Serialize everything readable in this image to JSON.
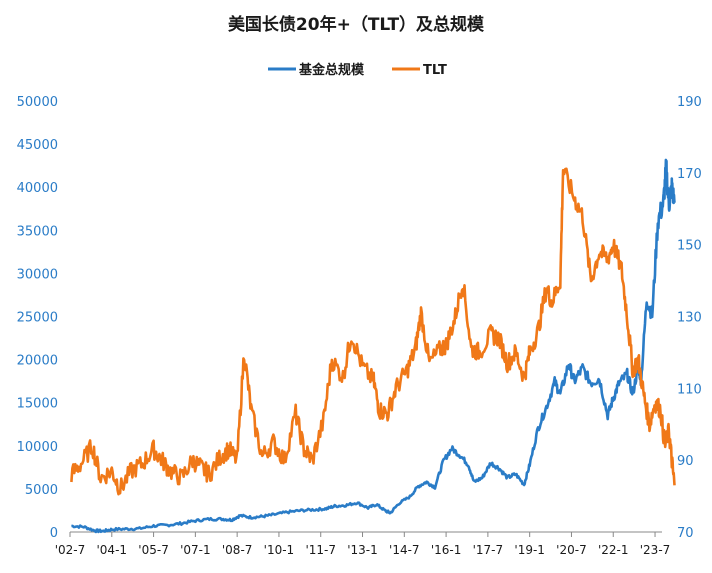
{
  "chart_data": {
    "type": "line",
    "title": "美国长债20年+（TLT）及总规模",
    "legend_position": "top-center",
    "grid": false,
    "x_tick_labels": [
      "'02-7",
      "'04-1",
      "'05-7",
      "'07-1",
      "'08-7",
      "'10-1",
      "'11-7",
      "'13-1",
      "'14-7",
      "'16-1",
      "'17-7",
      "'19-1",
      "'20-7",
      "'22-1",
      "'23-7"
    ],
    "x_tick_values": [
      2002.5,
      2004.0,
      2005.5,
      2007.0,
      2008.5,
      2010.0,
      2011.5,
      2013.0,
      2014.5,
      2016.0,
      2017.5,
      2019.0,
      2020.5,
      2022.0,
      2023.5
    ],
    "xlim": [
      2002.5,
      2023.75
    ],
    "y_left": {
      "ticks": [
        "0",
        "5000",
        "10000",
        "15000",
        "20000",
        "25000",
        "30000",
        "35000",
        "40000",
        "45000",
        "50000"
      ],
      "lim": [
        0,
        50000
      ]
    },
    "y_right": {
      "ticks": [
        "70",
        "90",
        "110",
        "130",
        "150",
        "170",
        "190"
      ],
      "lim": [
        70,
        190
      ]
    },
    "series": [
      {
        "name": "基金总规模",
        "axis": "left",
        "color": "#2a7cc7",
        "points": [
          [
            2002.55,
            700
          ],
          [
            2003.0,
            600
          ],
          [
            2003.4,
            150
          ],
          [
            2003.7,
            100
          ],
          [
            2004.0,
            300
          ],
          [
            2004.5,
            350
          ],
          [
            2005.0,
            400
          ],
          [
            2005.5,
            700
          ],
          [
            2006.0,
            800
          ],
          [
            2006.5,
            1000
          ],
          [
            2007.0,
            1300
          ],
          [
            2007.5,
            1500
          ],
          [
            2008.0,
            1500
          ],
          [
            2008.3,
            1400
          ],
          [
            2008.6,
            1900
          ],
          [
            2009.0,
            1700
          ],
          [
            2009.4,
            1800
          ],
          [
            2009.8,
            2000
          ],
          [
            2010.3,
            2300
          ],
          [
            2010.8,
            2500
          ],
          [
            2011.3,
            2600
          ],
          [
            2011.7,
            2700
          ],
          [
            2012.0,
            3000
          ],
          [
            2012.4,
            3100
          ],
          [
            2012.8,
            3400
          ],
          [
            2013.2,
            2800
          ],
          [
            2013.5,
            3200
          ],
          [
            2013.8,
            2500
          ],
          [
            2014.0,
            2200
          ],
          [
            2014.3,
            3300
          ],
          [
            2014.7,
            4100
          ],
          [
            2015.0,
            5300
          ],
          [
            2015.3,
            5800
          ],
          [
            2015.6,
            5200
          ],
          [
            2015.9,
            8200
          ],
          [
            2016.2,
            9700
          ],
          [
            2016.5,
            8900
          ],
          [
            2016.8,
            7800
          ],
          [
            2017.0,
            5800
          ],
          [
            2017.3,
            6300
          ],
          [
            2017.6,
            8000
          ],
          [
            2017.9,
            7400
          ],
          [
            2018.2,
            6300
          ],
          [
            2018.5,
            6700
          ],
          [
            2018.8,
            5500
          ],
          [
            2019.0,
            7800
          ],
          [
            2019.3,
            12000
          ],
          [
            2019.6,
            14500
          ],
          [
            2019.9,
            17400
          ],
          [
            2020.1,
            16000
          ],
          [
            2020.4,
            19500
          ],
          [
            2020.6,
            17500
          ],
          [
            2020.9,
            19000
          ],
          [
            2021.2,
            17300
          ],
          [
            2021.5,
            17800
          ],
          [
            2021.8,
            13500
          ],
          [
            2022.0,
            15500
          ],
          [
            2022.2,
            17200
          ],
          [
            2022.5,
            18300
          ],
          [
            2022.7,
            16000
          ],
          [
            2022.9,
            19300
          ],
          [
            2023.0,
            17500
          ],
          [
            2023.2,
            27000
          ],
          [
            2023.4,
            25200
          ],
          [
            2023.6,
            36000
          ],
          [
            2023.8,
            38200
          ],
          [
            2023.9,
            42200
          ],
          [
            2024.0,
            38000
          ],
          [
            2024.1,
            40000
          ],
          [
            2024.2,
            38200
          ]
        ]
      },
      {
        "name": "TLT",
        "axis": "right",
        "color": "#f07818",
        "points": [
          [
            2002.55,
            86
          ],
          [
            2002.9,
            89
          ],
          [
            2003.3,
            94
          ],
          [
            2003.6,
            85
          ],
          [
            2004.0,
            87
          ],
          [
            2004.3,
            82
          ],
          [
            2004.7,
            87
          ],
          [
            2005.1,
            89
          ],
          [
            2005.5,
            93
          ],
          [
            2005.8,
            90
          ],
          [
            2006.1,
            87
          ],
          [
            2006.5,
            85
          ],
          [
            2006.9,
            90
          ],
          [
            2007.2,
            88
          ],
          [
            2007.5,
            86
          ],
          [
            2007.9,
            91
          ],
          [
            2008.2,
            93
          ],
          [
            2008.5,
            90
          ],
          [
            2008.75,
            120
          ],
          [
            2009.0,
            104
          ],
          [
            2009.4,
            91
          ],
          [
            2009.8,
            95
          ],
          [
            2010.2,
            90
          ],
          [
            2010.6,
            103
          ],
          [
            2010.9,
            93
          ],
          [
            2011.2,
            90
          ],
          [
            2011.6,
            101
          ],
          [
            2011.9,
            118
          ],
          [
            2012.3,
            113
          ],
          [
            2012.6,
            125
          ],
          [
            2013.0,
            116
          ],
          [
            2013.4,
            112
          ],
          [
            2013.6,
            104
          ],
          [
            2013.9,
            103
          ],
          [
            2014.2,
            110
          ],
          [
            2014.6,
            115
          ],
          [
            2014.9,
            121
          ],
          [
            2015.1,
            131
          ],
          [
            2015.4,
            117
          ],
          [
            2015.8,
            121
          ],
          [
            2016.0,
            122
          ],
          [
            2016.3,
            129
          ],
          [
            2016.6,
            140
          ],
          [
            2016.9,
            121
          ],
          [
            2017.2,
            120
          ],
          [
            2017.6,
            125
          ],
          [
            2017.9,
            124
          ],
          [
            2018.2,
            117
          ],
          [
            2018.5,
            120
          ],
          [
            2018.8,
            113
          ],
          [
            2019.0,
            120
          ],
          [
            2019.3,
            126
          ],
          [
            2019.6,
            138
          ],
          [
            2019.8,
            134
          ],
          [
            2020.1,
            140
          ],
          [
            2020.2,
            171
          ],
          [
            2020.6,
            163
          ],
          [
            2020.9,
            158
          ],
          [
            2021.2,
            140
          ],
          [
            2021.5,
            148
          ],
          [
            2021.8,
            146
          ],
          [
            2022.0,
            150
          ],
          [
            2022.3,
            143
          ],
          [
            2022.5,
            130
          ],
          [
            2022.7,
            115
          ],
          [
            2022.9,
            118
          ],
          [
            2023.1,
            108
          ],
          [
            2023.3,
            100
          ],
          [
            2023.5,
            106
          ],
          [
            2023.7,
            104
          ],
          [
            2023.85,
            94
          ],
          [
            2024.0,
            98
          ],
          [
            2024.1,
            90
          ],
          [
            2024.2,
            83
          ]
        ]
      }
    ]
  }
}
